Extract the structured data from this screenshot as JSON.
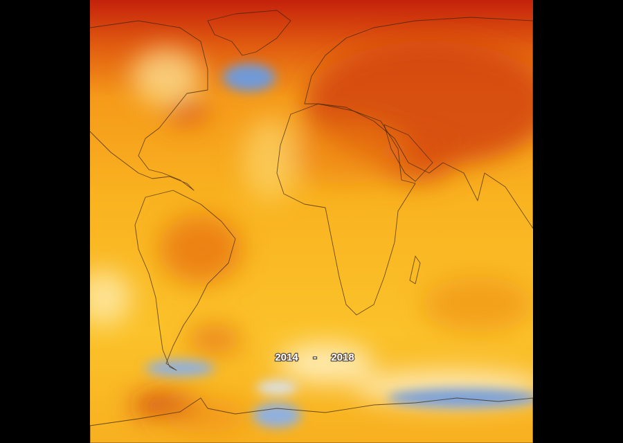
{
  "caption": {
    "start": "2014",
    "dash": "-",
    "end": "2018"
  }
}
